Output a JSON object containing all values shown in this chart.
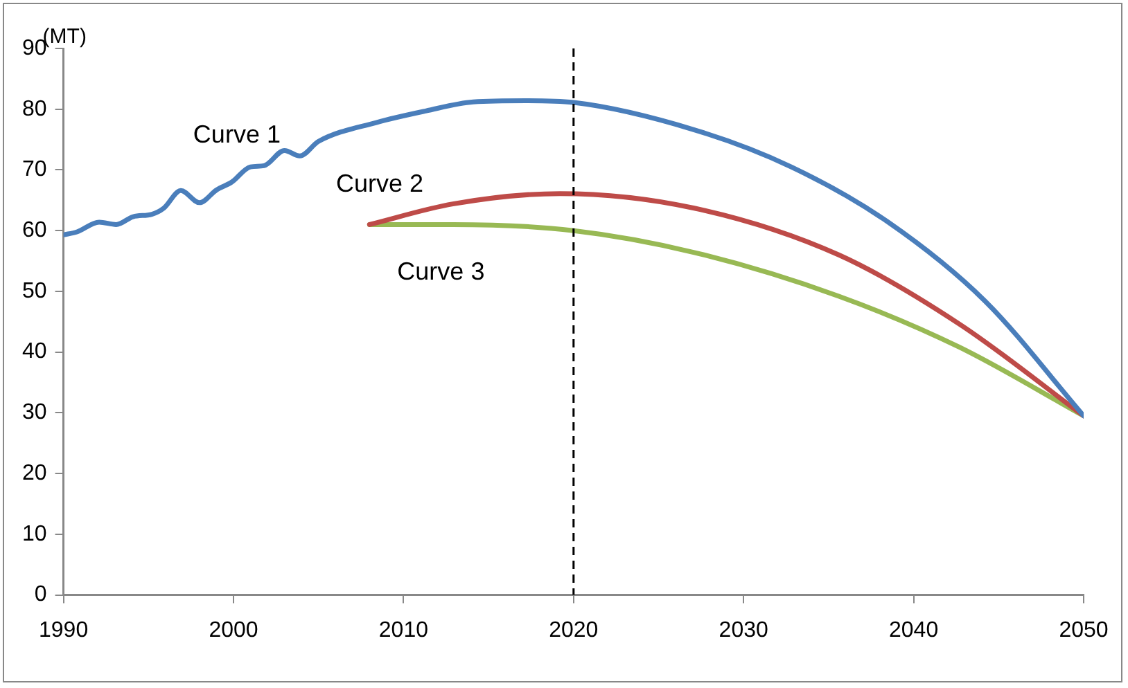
{
  "chart_data": {
    "type": "line",
    "ylabel": "(MT)",
    "xlim": [
      1990,
      2050
    ],
    "xticks": [
      1990,
      2000,
      2010,
      2020,
      2030,
      2040,
      2050
    ],
    "ylim": [
      0,
      90
    ],
    "yticks": [
      0,
      10,
      20,
      30,
      40,
      50,
      60,
      70,
      80,
      90
    ],
    "grid": false,
    "legend": false,
    "marker": "none",
    "line_style": "solid",
    "ref_lines": [
      {
        "axis": "x",
        "value": 2020,
        "color": "#000000",
        "line_style": "dashed"
      }
    ],
    "series": [
      {
        "name": "Curve 1",
        "color": "#4a7ebb",
        "x": [
          1990,
          1990.8,
          1992.1,
          1993.1,
          1994.1,
          1995.2,
          1995.9,
          1996.9,
          1998,
          1999,
          1999.9,
          2001,
          2001.8,
          2003,
          2003.9,
          2005,
          2008.4,
          2011.3,
          2014.1,
          2017.2,
          2020,
          2027.1,
          2032.8,
          2038.5,
          2044.2,
          2050
        ],
        "values": [
          59.3,
          59.8,
          61.4,
          61.0,
          62.3,
          62.7,
          63.7,
          66.6,
          64.6,
          66.7,
          68.0,
          70.5,
          70.7,
          73.2,
          72.3,
          74.7,
          77.8,
          79.7,
          81.2,
          81.4,
          81.1,
          76.6,
          70.5,
          61.4,
          48.4,
          29.5
        ]
      },
      {
        "name": "Curve 2",
        "color": "#be4b48",
        "x": [
          2008,
          2012.9,
          2019.2,
          2027.1,
          2035.6,
          2042.7,
          2050
        ],
        "values": [
          61.0,
          64.4,
          66.1,
          63.7,
          56.0,
          44.6,
          29.5
        ]
      },
      {
        "name": "Curve 3",
        "color": "#98b954",
        "x": [
          2008,
          2012.9,
          2020,
          2027.1,
          2035.6,
          2042.7,
          2050
        ],
        "values": [
          61.0,
          61.0,
          60.0,
          56.4,
          49.2,
          40.8,
          29.5
        ]
      }
    ]
  }
}
